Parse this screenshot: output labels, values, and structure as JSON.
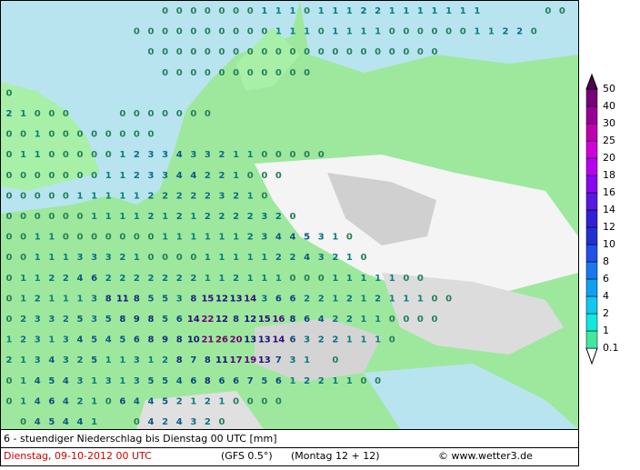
{
  "map": {
    "grid": [
      [
        null,
        null,
        null,
        null,
        null,
        null,
        null,
        null,
        null,
        null,
        null,
        0,
        0,
        0,
        0,
        0,
        0,
        0,
        1,
        1,
        1,
        0,
        1,
        1,
        1,
        2,
        2,
        1,
        1,
        1,
        1,
        1,
        1,
        1,
        null,
        null,
        null,
        null,
        0,
        0
      ],
      [
        null,
        null,
        null,
        null,
        null,
        null,
        null,
        null,
        null,
        0,
        0,
        0,
        0,
        0,
        0,
        0,
        0,
        0,
        0,
        1,
        1,
        1,
        0,
        1,
        1,
        1,
        1,
        0,
        0,
        0,
        0,
        0,
        0,
        1,
        1,
        2,
        2,
        0
      ],
      [
        null,
        null,
        null,
        null,
        null,
        null,
        null,
        null,
        null,
        null,
        0,
        0,
        0,
        0,
        0,
        0,
        0,
        0,
        0,
        0,
        0,
        0,
        0,
        0,
        0,
        0,
        0,
        0,
        0,
        0,
        0
      ],
      [
        null,
        null,
        null,
        null,
        null,
        null,
        null,
        null,
        null,
        null,
        null,
        0,
        0,
        0,
        0,
        0,
        0,
        0,
        0,
        0,
        0,
        0
      ],
      [
        0
      ],
      [
        2,
        1,
        0,
        0,
        0,
        null,
        null,
        null,
        0,
        0,
        0,
        0,
        0,
        0,
        0
      ],
      [
        0,
        0,
        1,
        0,
        0,
        0,
        0,
        0,
        0,
        0,
        0
      ],
      [
        0,
        1,
        1,
        0,
        0,
        0,
        0,
        0,
        1,
        2,
        3,
        3,
        4,
        3,
        3,
        2,
        1,
        1,
        0,
        0,
        0,
        0,
        0
      ],
      [
        0,
        0,
        0,
        0,
        0,
        0,
        0,
        1,
        1,
        2,
        3,
        3,
        4,
        4,
        2,
        2,
        1,
        0,
        0,
        0
      ],
      [
        0,
        0,
        0,
        0,
        0,
        1,
        1,
        1,
        1,
        1,
        2,
        2,
        2,
        2,
        2,
        3,
        2,
        1,
        0
      ],
      [
        0,
        0,
        0,
        0,
        0,
        0,
        1,
        1,
        1,
        1,
        2,
        1,
        2,
        1,
        2,
        2,
        2,
        2,
        3,
        2,
        0
      ],
      [
        0,
        0,
        1,
        1,
        0,
        0,
        0,
        0,
        0,
        0,
        0,
        1,
        1,
        1,
        1,
        1,
        1,
        2,
        3,
        4,
        4,
        5,
        3,
        1,
        0
      ],
      [
        0,
        0,
        1,
        1,
        1,
        3,
        3,
        3,
        2,
        1,
        0,
        0,
        0,
        0,
        1,
        1,
        1,
        1,
        1,
        2,
        2,
        4,
        3,
        2,
        1,
        0
      ],
      [
        0,
        1,
        1,
        2,
        2,
        4,
        6,
        2,
        2,
        2,
        2,
        2,
        2,
        2,
        1,
        1,
        2,
        1,
        1,
        1,
        0,
        0,
        0,
        1,
        1,
        1,
        1,
        1,
        0,
        0
      ],
      [
        0,
        1,
        2,
        1,
        1,
        1,
        3,
        8,
        11,
        8,
        5,
        5,
        3,
        8,
        15,
        12,
        13,
        14,
        3,
        6,
        6,
        2,
        2,
        1,
        2,
        1,
        2,
        1,
        1,
        1,
        0,
        0
      ],
      [
        0,
        2,
        3,
        3,
        2,
        5,
        3,
        5,
        8,
        9,
        8,
        5,
        6,
        14,
        22,
        12,
        8,
        12,
        15,
        16,
        8,
        6,
        4,
        2,
        2,
        1,
        1,
        0,
        0,
        0,
        0
      ],
      [
        1,
        2,
        3,
        1,
        3,
        4,
        5,
        4,
        5,
        6,
        8,
        9,
        8,
        10,
        21,
        26,
        20,
        13,
        13,
        14,
        6,
        3,
        2,
        2,
        1,
        1,
        1,
        0
      ],
      [
        2,
        1,
        3,
        4,
        3,
        2,
        5,
        1,
        1,
        3,
        1,
        2,
        8,
        7,
        8,
        11,
        17,
        19,
        13,
        7,
        3,
        1,
        null,
        0
      ],
      [
        0,
        1,
        4,
        5,
        4,
        3,
        1,
        3,
        1,
        3,
        5,
        5,
        4,
        6,
        8,
        6,
        6,
        7,
        5,
        6,
        1,
        2,
        2,
        1,
        1,
        0,
        0
      ],
      [
        0,
        1,
        4,
        6,
        4,
        2,
        1,
        0,
        6,
        4,
        4,
        5,
        2,
        1,
        2,
        1,
        0,
        0,
        0,
        0
      ],
      [
        null,
        0,
        4,
        5,
        4,
        4,
        1,
        null,
        null,
        0,
        4,
        2,
        4,
        3,
        2,
        0
      ]
    ]
  },
  "legend": {
    "levels": [
      0.1,
      1,
      2,
      4,
      6,
      8,
      10,
      12,
      14,
      16,
      18,
      20,
      25,
      30,
      40,
      50
    ],
    "colors": [
      "#40e8a0",
      "#10e8e0",
      "#10c8f0",
      "#10a0f0",
      "#1878f0",
      "#2050e8",
      "#2030d0",
      "#3020d8",
      "#5818e0",
      "#8808f0",
      "#b800f0",
      "#d000d8",
      "#c000b0",
      "#980098",
      "#780078",
      "#500050"
    ]
  },
  "footer": {
    "description": "6 - stuendiger Niederschlag bis Dienstag 00 UTC [mm]",
    "date": "Dienstag, 09-10-2012  00 UTC",
    "model": "(GFS 0.5°)",
    "run": "(Montag 12 + 12)",
    "credit": "© www.wetter3.de"
  }
}
